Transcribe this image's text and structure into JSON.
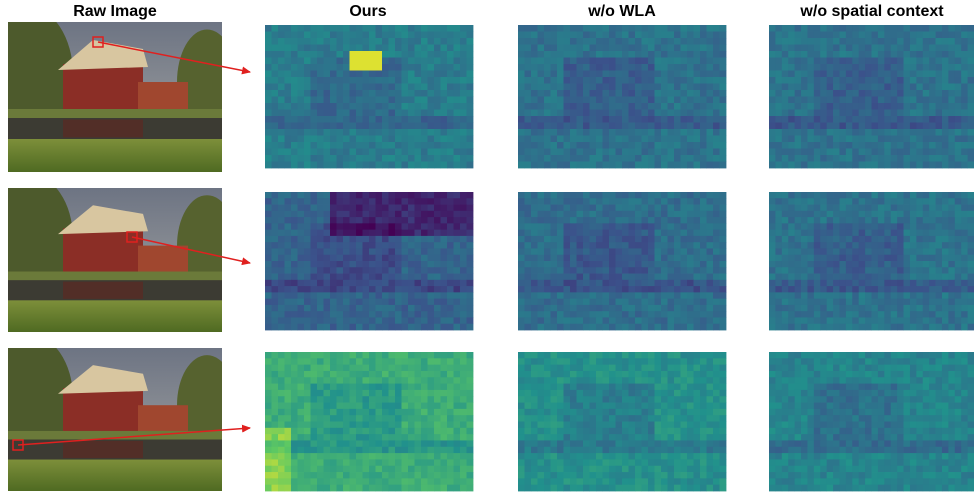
{
  "headers": [
    "Raw Image",
    "Ours",
    "w/o WLA",
    "w/o spatial context"
  ]
}
